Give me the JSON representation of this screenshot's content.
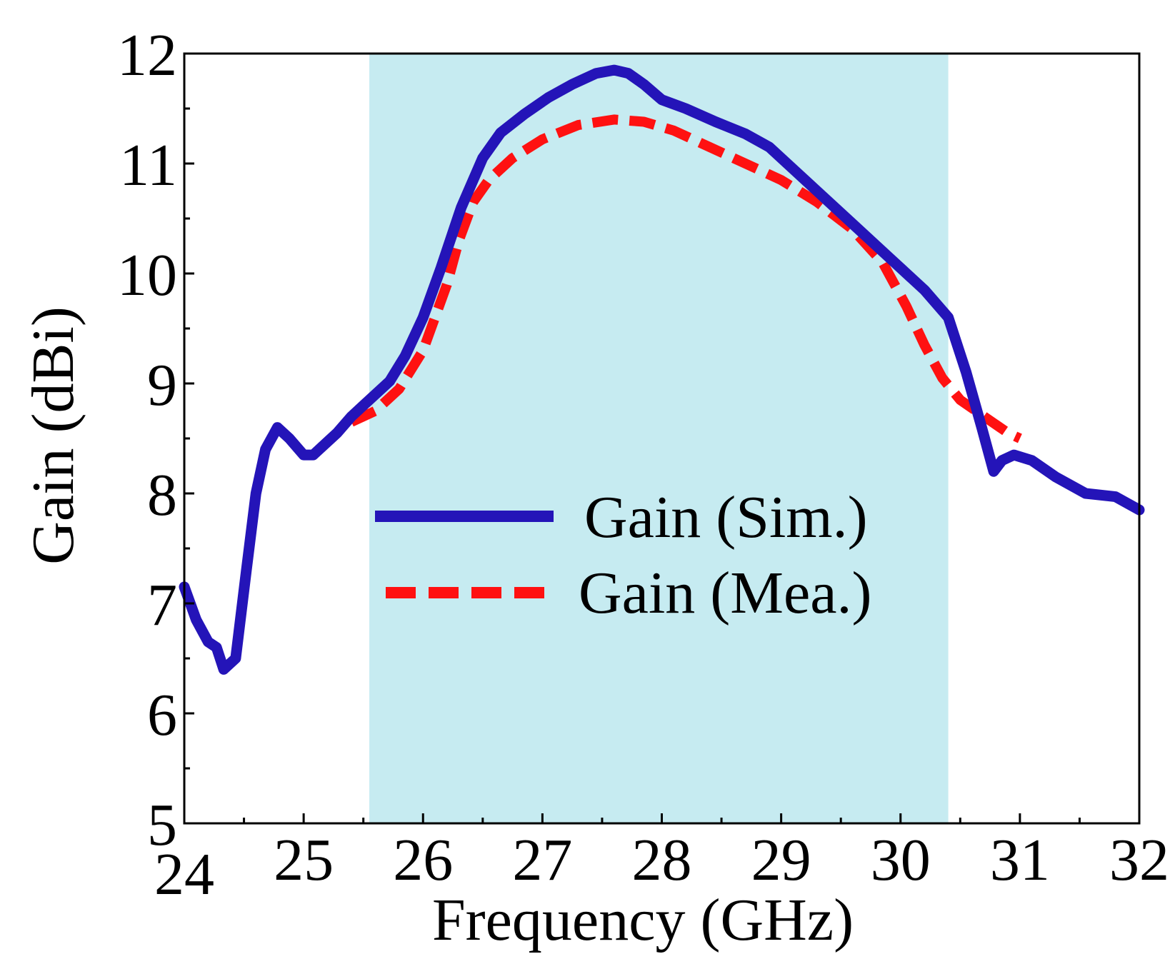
{
  "chart_data": {
    "type": "line",
    "title": "",
    "xlabel": "Frequency (GHz)",
    "ylabel": "Gain (dBi)",
    "xlim": [
      24,
      32
    ],
    "ylim": [
      5,
      12
    ],
    "xticks": [
      "24",
      "25",
      "26",
      "27",
      "28",
      "29",
      "30",
      "31",
      "32"
    ],
    "yticks": [
      "5",
      "6",
      "7",
      "8",
      "9",
      "10",
      "11",
      "12"
    ],
    "grid": false,
    "legend_position": "center",
    "highlight_band": {
      "x0": 25.55,
      "x1": 30.4,
      "color": "#c6ebf1"
    },
    "series": [
      {
        "name": "Gain (Sim.)",
        "color": "#2414b8",
        "style": "solid",
        "x": [
          24.0,
          24.1,
          24.2,
          24.27,
          24.33,
          24.43,
          24.52,
          24.6,
          24.68,
          24.78,
          24.88,
          25.0,
          25.08,
          25.18,
          25.28,
          25.4,
          25.55,
          25.72,
          25.85,
          26.0,
          26.15,
          26.32,
          26.5,
          26.65,
          26.85,
          27.05,
          27.25,
          27.45,
          27.6,
          27.72,
          27.85,
          28.0,
          28.2,
          28.45,
          28.7,
          28.9,
          29.05,
          29.3,
          29.6,
          29.9,
          30.2,
          30.4,
          30.55,
          30.68,
          30.78,
          30.85,
          30.95,
          31.1,
          31.3,
          31.55,
          31.8,
          32.0
        ],
        "y": [
          7.15,
          6.85,
          6.65,
          6.6,
          6.4,
          6.5,
          7.3,
          8.0,
          8.4,
          8.6,
          8.5,
          8.35,
          8.35,
          8.45,
          8.55,
          8.7,
          8.85,
          9.02,
          9.25,
          9.6,
          10.05,
          10.6,
          11.05,
          11.28,
          11.45,
          11.6,
          11.72,
          11.82,
          11.85,
          11.82,
          11.72,
          11.58,
          11.5,
          11.38,
          11.27,
          11.15,
          11.0,
          10.75,
          10.45,
          10.15,
          9.85,
          9.6,
          9.1,
          8.6,
          8.2,
          8.3,
          8.35,
          8.3,
          8.15,
          8.0,
          7.97,
          7.85
        ]
      },
      {
        "name": "Gain (Mea.)",
        "color": "#ff1111",
        "style": "dashed",
        "x": [
          25.4,
          25.6,
          25.8,
          26.0,
          26.2,
          26.3,
          26.42,
          26.55,
          26.75,
          27.0,
          27.3,
          27.6,
          27.85,
          28.1,
          28.4,
          28.7,
          29.0,
          29.3,
          29.6,
          29.85,
          30.05,
          30.2,
          30.35,
          30.5,
          30.7,
          30.9,
          31.0
        ],
        "y": [
          8.65,
          8.75,
          8.95,
          9.3,
          9.9,
          10.3,
          10.65,
          10.85,
          11.05,
          11.22,
          11.35,
          11.4,
          11.38,
          11.3,
          11.15,
          11.0,
          10.85,
          10.65,
          10.4,
          10.1,
          9.7,
          9.35,
          9.05,
          8.85,
          8.7,
          8.55,
          8.5
        ]
      }
    ]
  }
}
